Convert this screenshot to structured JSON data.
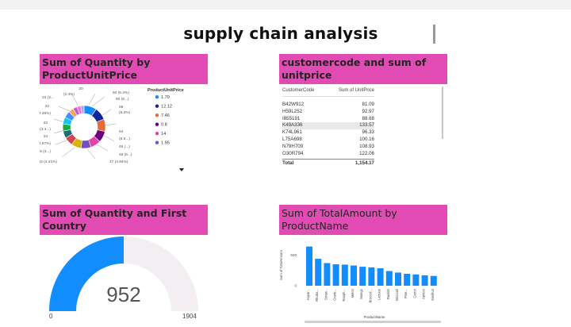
{
  "page": {
    "title": "supply chain analysis"
  },
  "visuals": {
    "donut": {
      "header": "Sum of Quantity by ProductUnitPrice",
      "legend_title": "ProductUnitPrice",
      "legend_items": [
        {
          "label": "1.79",
          "color": "#118dff"
        },
        {
          "label": "12.12",
          "color": "#12239e"
        },
        {
          "label": "7.46",
          "color": "#e66c37"
        },
        {
          "label": "0.8",
          "color": "#6b007b"
        },
        {
          "label": "14",
          "color": "#e044a7"
        },
        {
          "label": "1.95",
          "color": "#744ec2"
        }
      ],
      "labels_left": [
        "20",
        "24 (2...",
        "(2.4%)",
        "32",
        "(3.36%)",
        "33",
        "(3.4...)",
        "34",
        "(3.57%)",
        "35 (3...)",
        "42 (4.41%)"
      ],
      "labels_right": [
        "60 (6.3%)",
        "60 (6...)",
        "59",
        "(6.2%)",
        "54",
        "(5.6...)",
        "49 (...)",
        "48 (5...)",
        "47 (4.94%)"
      ],
      "slices": [
        {
          "value": 60,
          "color": "#118dff"
        },
        {
          "value": 60,
          "color": "#12239e"
        },
        {
          "value": 59,
          "color": "#e66c37"
        },
        {
          "value": 54,
          "color": "#6b007b"
        },
        {
          "value": 49,
          "color": "#e044a7"
        },
        {
          "value": 48,
          "color": "#744ec2"
        },
        {
          "value": 47,
          "color": "#d9b300"
        },
        {
          "value": 42,
          "color": "#d64550"
        },
        {
          "value": 35,
          "color": "#197278"
        },
        {
          "value": 34,
          "color": "#1aab40"
        },
        {
          "value": 33,
          "color": "#15c6f4"
        },
        {
          "value": 32,
          "color": "#4092ff"
        },
        {
          "value": 24,
          "color": "#ffa058"
        },
        {
          "value": 20,
          "color": "#be5dc9"
        },
        {
          "value": 18,
          "color": "#f472d0"
        },
        {
          "value": 16,
          "color": "#b5a1ff"
        }
      ]
    },
    "table": {
      "header": "customercode and sum of unitprice",
      "columns": [
        "CustomerCode",
        "Sum of UnitPrice"
      ],
      "rows": [
        {
          "code": "B42W912",
          "value": "81.09"
        },
        {
          "code": "H59L252",
          "value": "92.97"
        },
        {
          "code": "I855191",
          "value": "88.68"
        },
        {
          "code": "K49A336",
          "value": "133.57"
        },
        {
          "code": "K74L961",
          "value": "96.33"
        },
        {
          "code": "L75A698",
          "value": "100.16"
        },
        {
          "code": "N79H709",
          "value": "108.93"
        },
        {
          "code": "O30R794",
          "value": "122.06"
        }
      ],
      "total_label": "Total",
      "total_value": "1,154.17"
    },
    "gauge": {
      "header": "Sum of Quantity and First Country",
      "value": "952",
      "min": "0",
      "max": "1904",
      "fraction": 0.5,
      "fill_color": "#118dff",
      "track_color": "#f2eef2"
    },
    "bar": {
      "header": "Sum of TotalAmount by ProductName",
      "ylabel": "Sum of TotalAmount",
      "xlabel": "ProductName",
      "yticks": [
        "500",
        "0"
      ],
      "categories": [
        "Aspar...",
        "Rhuba...",
        "Straw...",
        "Cranb...",
        "Rasph...",
        "Melon",
        "Mango",
        "Broccol...",
        "Lettuce",
        "Radish",
        "Broccoli",
        "Pine...",
        "Carrot",
        "Apricot",
        "Kiwifruit"
      ],
      "bar_color": "#118dff"
    }
  },
  "chart_data": [
    {
      "type": "pie",
      "title": "Sum of Quantity by ProductUnitPrice",
      "legend_title": "ProductUnitPrice",
      "legend": [
        "1.79",
        "12.12",
        "7.46",
        "0.8",
        "14",
        "1.95"
      ],
      "values": [
        60,
        60,
        59,
        54,
        49,
        48,
        47,
        42,
        35,
        34,
        33,
        32,
        24,
        20,
        18,
        16
      ]
    },
    {
      "type": "bar",
      "title": "Sum of TotalAmount by ProductName",
      "xlabel": "ProductName",
      "ylabel": "Sum of TotalAmount",
      "categories": [
        "Aspar...",
        "Rhuba...",
        "Straw...",
        "Cranb...",
        "Rasph...",
        "Melon",
        "Mango",
        "Broccol...",
        "Lettuce",
        "Radish",
        "Broccoli",
        "Pine...",
        "Carrot",
        "Apricot",
        "Kiwifruit"
      ],
      "values": [
        640,
        440,
        370,
        350,
        345,
        330,
        310,
        300,
        285,
        240,
        215,
        195,
        185,
        170,
        160
      ],
      "ylim": [
        0,
        700
      ]
    }
  ]
}
